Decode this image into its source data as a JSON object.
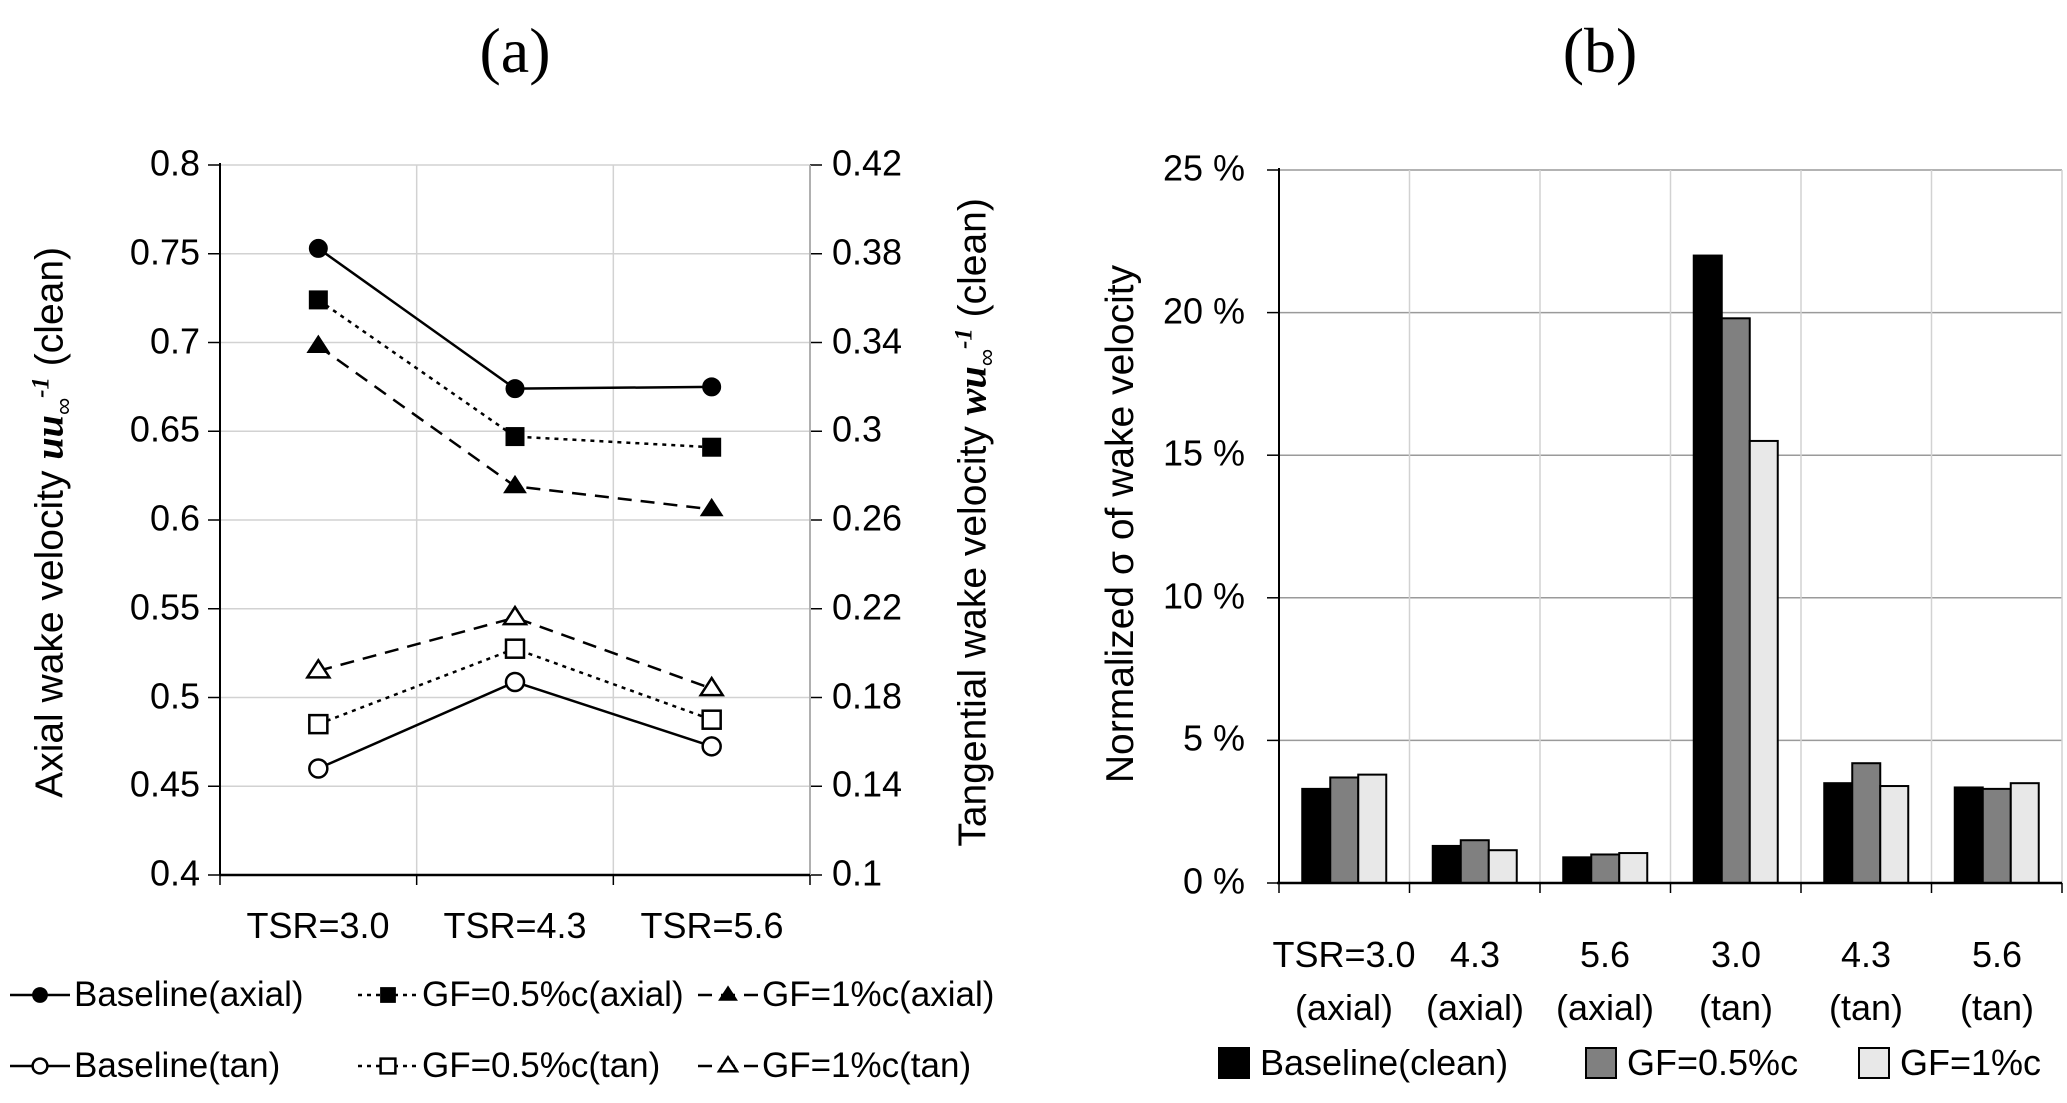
{
  "colors": {
    "background": "#ffffff",
    "axis": "#000000",
    "grid_light": "#d2d2d2",
    "grid_medium": "#9a9a9a",
    "right_axis_line": "#b0b0b0",
    "bar_border": "#000000"
  },
  "chart_data": [
    {
      "type": "line",
      "panel": "a",
      "title": "(a)",
      "x_categories": [
        "TSR=3.0",
        "TSR=4.3",
        "TSR=5.6"
      ],
      "y_left": {
        "label_prefix": "Axial wake velocity ",
        "label_math": "uu",
        "label_sub": "∞",
        "label_sup": "-1",
        "label_suffix": " (clean)",
        "min": 0.4,
        "max": 0.8,
        "tick_step": 0.05,
        "ticks": [
          "0.8",
          "0.75",
          "0.7",
          "0.65",
          "0.6",
          "0.55",
          "0.5",
          "0.45",
          "0.4"
        ]
      },
      "y_right": {
        "label_prefix": "Tangential wake velocity ",
        "label_math": "wu",
        "label_sub": "∞",
        "label_sup": "-1",
        "label_suffix": " (clean)",
        "min": 0.1,
        "max": 0.42,
        "tick_step": 0.04,
        "ticks": [
          "0.42",
          "0.38",
          "0.34",
          "0.3",
          "0.26",
          "0.22",
          "0.18",
          "0.14",
          "0.1"
        ]
      },
      "grid": true,
      "legend_position": "bottom",
      "series": [
        {
          "name": "Baseline(axial)",
          "axis": "left",
          "marker": "circle",
          "marker_fill": "filled",
          "line_style": "solid",
          "values": [
            0.753,
            0.674,
            0.675
          ]
        },
        {
          "name": "GF=0.5%c(axial)",
          "axis": "left",
          "marker": "square",
          "marker_fill": "filled",
          "line_style": "dotted",
          "values": [
            0.724,
            0.647,
            0.641
          ]
        },
        {
          "name": "GF=1%c(axial)",
          "axis": "left",
          "marker": "triangle",
          "marker_fill": "filled",
          "line_style": "dashed",
          "values": [
            0.698,
            0.619,
            0.606
          ]
        },
        {
          "name": "Baseline(tan)",
          "axis": "right",
          "marker": "circle",
          "marker_fill": "open",
          "line_style": "solid",
          "values": [
            0.148,
            0.187,
            0.158
          ]
        },
        {
          "name": "GF=0.5%c(tan)",
          "axis": "right",
          "marker": "square",
          "marker_fill": "open",
          "line_style": "dotted",
          "values": [
            0.168,
            0.202,
            0.17
          ]
        },
        {
          "name": "GF=1%c(tan)",
          "axis": "right",
          "marker": "triangle",
          "marker_fill": "open",
          "line_style": "dashed",
          "values": [
            0.192,
            0.216,
            0.184
          ]
        }
      ]
    },
    {
      "type": "bar",
      "panel": "b",
      "title": "(b)",
      "y": {
        "label": "Normalized σ of wake velocity",
        "min": 0,
        "max": 25,
        "tick_step": 5,
        "ticks": [
          "25 %",
          "20 %",
          "15 %",
          "10 %",
          "5 %",
          "0 %"
        ]
      },
      "categories_line1": [
        "TSR=3.0",
        "4.3",
        "5.6",
        "3.0",
        "4.3",
        "5.6"
      ],
      "categories_line2": [
        "(axial)",
        "(axial)",
        "(axial)",
        "(tan)",
        "(tan)",
        "(tan)"
      ],
      "grid": true,
      "legend_position": "bottom",
      "series": [
        {
          "name": "Baseline(clean)",
          "color": "#000000",
          "values": [
            3.3,
            1.3,
            0.9,
            22.0,
            3.5,
            3.35
          ]
        },
        {
          "name": "GF=0.5%c",
          "color": "#808080",
          "values": [
            3.7,
            1.5,
            1.0,
            19.8,
            4.2,
            3.3
          ]
        },
        {
          "name": "GF=1%c",
          "color": "#e8e8e8",
          "values": [
            3.8,
            1.15,
            1.05,
            15.5,
            3.4,
            3.5
          ]
        }
      ]
    }
  ]
}
